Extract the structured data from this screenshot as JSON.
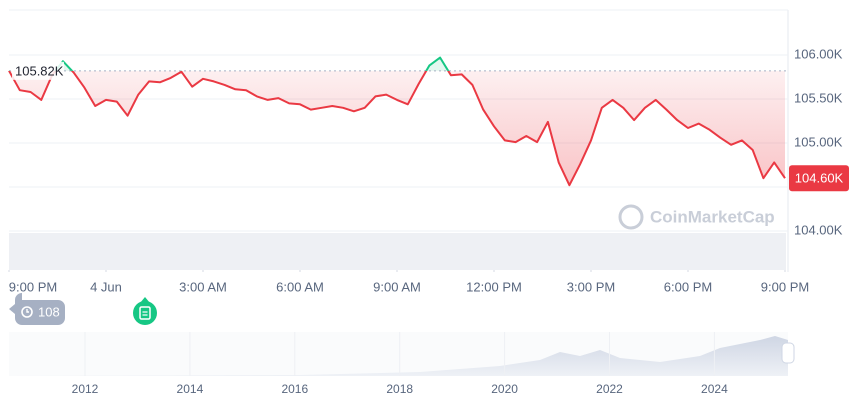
{
  "chart_data": {
    "type": "line",
    "categories": [
      "9:00 PM",
      null,
      null,
      null,
      null,
      null,
      null,
      null,
      null,
      "4 Jun",
      null,
      null,
      null,
      null,
      null,
      null,
      null,
      null,
      "3:00 AM",
      null,
      null,
      null,
      null,
      null,
      null,
      null,
      null,
      "6:00 AM",
      null,
      null,
      null,
      null,
      null,
      null,
      null,
      null,
      "9:00 AM",
      null,
      null,
      null,
      null,
      null,
      null,
      null,
      null,
      "12:00 PM",
      null,
      null,
      null,
      null,
      null,
      null,
      null,
      null,
      "3:00 PM",
      null,
      null,
      null,
      null,
      null,
      null,
      null,
      null,
      "6:00 PM",
      null,
      null,
      null,
      null,
      null,
      null,
      null,
      null,
      "9:00 PM"
    ],
    "values": [
      105820,
      105600,
      105580,
      105490,
      105770,
      105930,
      105800,
      105630,
      105420,
      105490,
      105470,
      105310,
      105550,
      105700,
      105690,
      105740,
      105810,
      105640,
      105730,
      105700,
      105660,
      105610,
      105600,
      105530,
      105490,
      105510,
      105450,
      105440,
      105380,
      105400,
      105420,
      105400,
      105360,
      105400,
      105530,
      105550,
      105490,
      105440,
      105670,
      105880,
      105970,
      105770,
      105780,
      105660,
      105380,
      105190,
      105030,
      105010,
      105080,
      105010,
      105240,
      104780,
      104520,
      104760,
      105030,
      105400,
      105490,
      105400,
      105260,
      105400,
      105490,
      105380,
      105260,
      105170,
      105220,
      105150,
      105060,
      104980,
      105030,
      104920,
      104600,
      104780,
      104600
    ],
    "value_labels": [
      null,
      null,
      null,
      null,
      null,
      null,
      null,
      null,
      null,
      null,
      null,
      null,
      null,
      null,
      null,
      null,
      null,
      null,
      null,
      null,
      null,
      null,
      null,
      null,
      null,
      null,
      null,
      null,
      null,
      null,
      null,
      null,
      null,
      null,
      null,
      null,
      null,
      null,
      null,
      null,
      null,
      null,
      null,
      null,
      null,
      null,
      null,
      null,
      null,
      null,
      null,
      null,
      null,
      null,
      null,
      null,
      null,
      null,
      null,
      null,
      null,
      null,
      null,
      null,
      null,
      null,
      null,
      null,
      null,
      null,
      null,
      null,
      "104.60K"
    ],
    "color": "#ea3943",
    "color_above": "#16c784",
    "reference": {
      "value": 105820,
      "label": "105.82K"
    },
    "ylim": [
      104000,
      106500
    ],
    "yticks": [
      {
        "value": 104000,
        "label": "104.00K"
      },
      {
        "value": 104500,
        "label": "104.50K"
      },
      {
        "value": 105000,
        "label": "105.00K"
      },
      {
        "value": 105500,
        "label": "105.50K"
      },
      {
        "value": 106000,
        "label": "106.00K"
      }
    ],
    "grid": true
  },
  "watermark": "CoinMarketCap",
  "badge": "108",
  "navigator": {
    "years": [
      "2012",
      "2014",
      "2016",
      "2018",
      "2020",
      "2022",
      "2024"
    ]
  }
}
